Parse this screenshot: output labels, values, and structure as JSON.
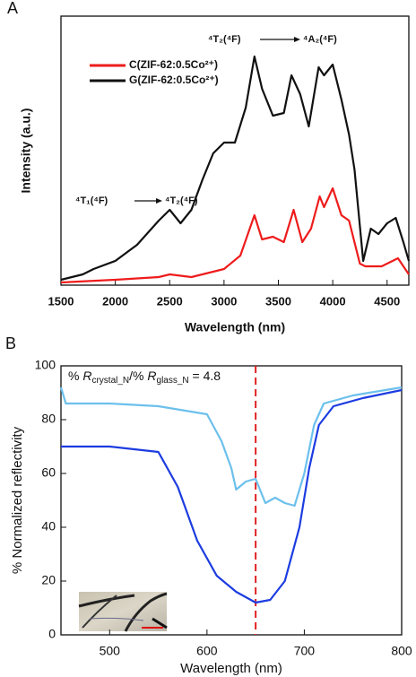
{
  "chart_data": [
    {
      "type": "line",
      "panel_label": "A",
      "x_label": "Wavelength (nm)",
      "y_label": "Intensity (a.u.)",
      "xlim": [
        1500,
        4700
      ],
      "xticks": [
        1500,
        2000,
        2500,
        3000,
        3500,
        4000,
        4500
      ],
      "ylim": [
        0,
        1
      ],
      "legend": "upper left",
      "series": [
        {
          "name": "C(ZIF-62:0.5Co²⁺)",
          "color": "#ee1c1c",
          "x": [
            1500,
            2000,
            2400,
            2500,
            2700,
            3000,
            3150,
            3280,
            3350,
            3450,
            3550,
            3640,
            3720,
            3800,
            3880,
            3920,
            4000,
            4080,
            4150,
            4250,
            4300,
            4450,
            4600,
            4700
          ],
          "values": [
            0.01,
            0.02,
            0.03,
            0.04,
            0.03,
            0.06,
            0.11,
            0.26,
            0.17,
            0.18,
            0.16,
            0.28,
            0.16,
            0.21,
            0.33,
            0.29,
            0.36,
            0.26,
            0.24,
            0.08,
            0.07,
            0.07,
            0.1,
            0.04
          ]
        },
        {
          "name": "G(ZIF-62:0.5Co²⁺)",
          "color": "#111111",
          "x": [
            1500,
            1700,
            1800,
            2000,
            2200,
            2400,
            2500,
            2600,
            2700,
            2800,
            2900,
            3000,
            3100,
            3200,
            3280,
            3350,
            3450,
            3550,
            3620,
            3700,
            3780,
            3870,
            3920,
            4000,
            4080,
            4150,
            4200,
            4280,
            4350,
            4420,
            4500,
            4580,
            4650,
            4700
          ],
          "values": [
            0.02,
            0.04,
            0.06,
            0.09,
            0.15,
            0.24,
            0.28,
            0.23,
            0.28,
            0.39,
            0.49,
            0.53,
            0.53,
            0.66,
            0.85,
            0.73,
            0.63,
            0.64,
            0.78,
            0.71,
            0.59,
            0.81,
            0.78,
            0.82,
            0.69,
            0.56,
            0.43,
            0.09,
            0.21,
            0.19,
            0.23,
            0.25,
            0.16,
            0.09
          ]
        }
      ],
      "annotations": [
        {
          "from": "⁴T₁(⁴F)",
          "to": "⁴T₂(⁴F)"
        },
        {
          "from": "⁴T₂(⁴F)",
          "to": "⁴A₂(⁴F)"
        }
      ]
    },
    {
      "type": "line",
      "panel_label": "B",
      "x_label": "Wavelength (nm)",
      "y_label": "% Normalized reflectivity",
      "xlim": [
        450,
        800
      ],
      "xticks": [
        500,
        600,
        700,
        800
      ],
      "ylim": [
        0,
        100
      ],
      "yticks": [
        0,
        20,
        40,
        60,
        80,
        100
      ],
      "annotation": [
        "% ",
        "R",
        "crystal_N",
        "/% ",
        "R",
        "glass_N",
        " = 4.8"
      ],
      "vline": {
        "value": 650,
        "color": "#e02020"
      },
      "series": [
        {
          "color": "#6cc0ec",
          "x": [
            450,
            455,
            500,
            550,
            600,
            615,
            625,
            630,
            640,
            650,
            660,
            670,
            680,
            690,
            700,
            710,
            720,
            750,
            800
          ],
          "values": [
            92,
            86,
            86,
            85,
            82,
            72,
            62,
            54,
            57,
            58,
            49,
            51,
            49,
            48,
            60,
            78,
            86,
            89,
            92
          ]
        },
        {
          "color": "#1c3ce0",
          "x": [
            450,
            500,
            550,
            570,
            590,
            610,
            630,
            650,
            665,
            680,
            695,
            705,
            715,
            730,
            760,
            800
          ],
          "values": [
            70,
            70,
            68,
            55,
            35,
            22,
            16,
            12,
            13,
            20,
            40,
            62,
            78,
            85,
            88,
            91
          ]
        }
      ]
    }
  ]
}
